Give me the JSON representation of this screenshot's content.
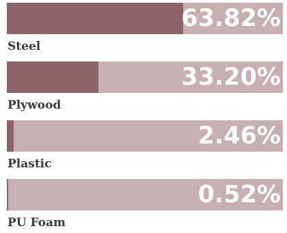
{
  "chart_data": {
    "type": "bar",
    "orientation": "horizontal",
    "categories": [
      "Steel",
      "Plywood",
      "Plastic",
      "PU Foam"
    ],
    "values": [
      63.82,
      33.2,
      2.46,
      0.52
    ],
    "value_labels": [
      "63.82%",
      "33.20%",
      "2.46%",
      "0.52%"
    ],
    "xlim": [
      0,
      100
    ],
    "unit": "%",
    "colors": {
      "fill": "#8b6569",
      "track": "#c6b0b2",
      "value_text": "#ffffff",
      "label_text": "#3b3b3b"
    }
  }
}
